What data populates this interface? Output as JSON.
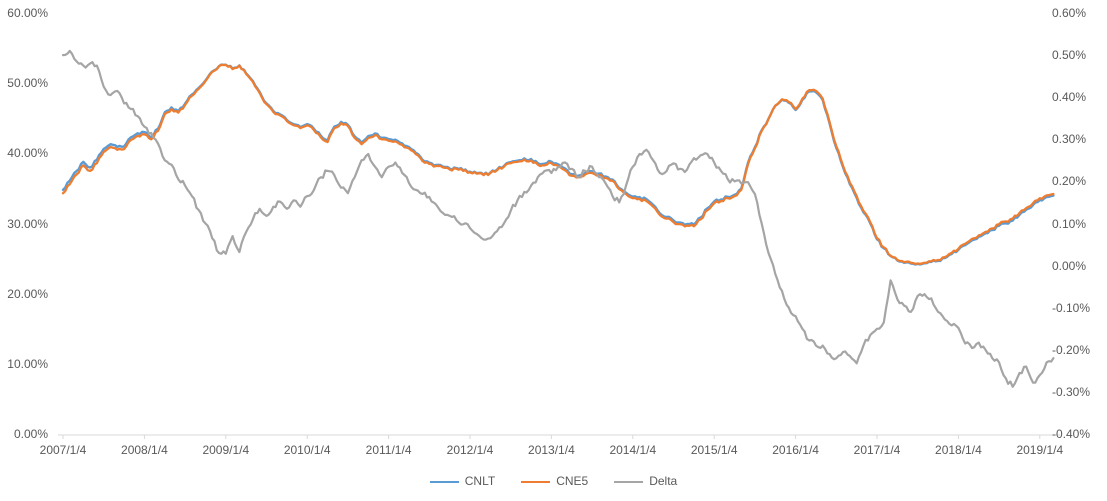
{
  "chart": {
    "background": "#FFFFFF",
    "text_color": "#595959",
    "axis_line_color": "#D9D9D9"
  },
  "axes": {
    "left": {
      "tick_labels_top_to_bottom": [
        "60.00%",
        "50.00%",
        "40.00%",
        "30.00%",
        "20.00%",
        "10.00%",
        "0.00%"
      ]
    },
    "right": {
      "tick_labels_top_to_bottom": [
        "0.60%",
        "0.50%",
        "0.40%",
        "0.30%",
        "0.20%",
        "0.10%",
        "0.00%",
        "-0.10%",
        "-0.20%",
        "-0.30%",
        "-0.40%"
      ]
    },
    "x": {
      "tick_labels": [
        "2007/1/4",
        "2008/1/4",
        "2009/1/4",
        "2010/1/4",
        "2011/1/4",
        "2012/1/4",
        "2013/1/4",
        "2014/1/4",
        "2015/1/4",
        "2016/1/4",
        "2017/1/4",
        "2018/1/4",
        "2019/1/4"
      ]
    }
  },
  "chart_data": {
    "type": "line",
    "title": "",
    "xlabel": "",
    "ylabel_left": "",
    "ylabel_right": "",
    "grid": false,
    "legend_position": "bottom-center",
    "left_axis_range": [
      0,
      60
    ],
    "right_axis_range": [
      -0.4,
      0.6
    ],
    "left_axis_unit": "%",
    "right_axis_unit": "%",
    "x": {
      "type": "monthly",
      "start": "2007/01",
      "end": "2019/03",
      "count": 147
    },
    "x_tick_years": [
      2007,
      2008,
      2009,
      2010,
      2011,
      2012,
      2013,
      2014,
      2015,
      2016,
      2017,
      2018,
      2019
    ],
    "series": [
      {
        "name": "CNLT",
        "axis": "left",
        "color": "#5B9BD5",
        "derived": "CNE5 + Delta",
        "note": "CNLT overlaps CNE5 almost exactly; offset equals Delta series (in percentage points)"
      },
      {
        "name": "CNE5",
        "axis": "left",
        "color": "#ED7D31",
        "values": [
          34.3,
          35.6,
          37.0,
          38.3,
          37.5,
          38.6,
          40.2,
          40.9,
          40.5,
          40.6,
          41.9,
          42.5,
          42.7,
          42.0,
          43.2,
          45.6,
          46.3,
          45.8,
          46.9,
          48.2,
          49.2,
          50.3,
          51.6,
          52.4,
          52.6,
          52.0,
          52.5,
          51.3,
          50.2,
          48.6,
          47.0,
          45.9,
          45.4,
          44.6,
          44.0,
          43.6,
          44.0,
          43.3,
          42.3,
          41.6,
          43.6,
          44.3,
          43.9,
          42.2,
          41.3,
          42.2,
          42.6,
          42.0,
          41.8,
          41.7,
          41.2,
          40.7,
          39.9,
          38.9,
          38.5,
          38.2,
          38.0,
          37.7,
          37.8,
          37.5,
          37.3,
          37.1,
          36.9,
          37.2,
          37.6,
          38.1,
          38.6,
          38.8,
          39.1,
          39.0,
          38.4,
          38.3,
          38.6,
          38.2,
          37.6,
          36.8,
          36.6,
          37.0,
          37.2,
          36.9,
          36.5,
          36.1,
          34.9,
          34.2,
          33.6,
          33.5,
          33.2,
          32.4,
          31.2,
          30.7,
          30.2,
          29.9,
          29.7,
          29.6,
          30.6,
          31.9,
          32.9,
          33.2,
          33.6,
          33.9,
          34.8,
          38.5,
          40.7,
          43.2,
          44.9,
          46.8,
          47.7,
          47.3,
          46.3,
          47.8,
          49.0,
          48.9,
          47.8,
          44.5,
          41.0,
          38.2,
          35.8,
          33.9,
          31.8,
          30.2,
          27.9,
          26.6,
          25.4,
          24.8,
          24.5,
          24.4,
          24.3,
          24.4,
          24.6,
          24.8,
          25.2,
          25.8,
          26.4,
          27.1,
          27.8,
          28.3,
          28.8,
          29.3,
          29.9,
          30.3,
          30.7,
          31.5,
          32.2,
          32.9,
          33.6,
          34.0,
          34.2
        ]
      },
      {
        "name": "Delta",
        "axis": "right",
        "color": "#A5A5A5",
        "values": [
          0.5,
          0.51,
          0.485,
          0.475,
          0.48,
          0.475,
          0.425,
          0.405,
          0.415,
          0.385,
          0.372,
          0.355,
          0.33,
          0.315,
          0.29,
          0.25,
          0.24,
          0.205,
          0.19,
          0.165,
          0.132,
          0.1,
          0.065,
          0.03,
          0.028,
          0.07,
          0.032,
          0.08,
          0.11,
          0.135,
          0.118,
          0.14,
          0.152,
          0.135,
          0.155,
          0.14,
          0.165,
          0.18,
          0.21,
          0.225,
          0.215,
          0.185,
          0.172,
          0.21,
          0.25,
          0.265,
          0.235,
          0.21,
          0.235,
          0.245,
          0.22,
          0.196,
          0.18,
          0.17,
          0.163,
          0.145,
          0.125,
          0.118,
          0.108,
          0.098,
          0.089,
          0.075,
          0.062,
          0.065,
          0.082,
          0.1,
          0.13,
          0.155,
          0.175,
          0.19,
          0.21,
          0.225,
          0.22,
          0.235,
          0.245,
          0.23,
          0.21,
          0.225,
          0.235,
          0.21,
          0.195,
          0.165,
          0.15,
          0.19,
          0.235,
          0.265,
          0.275,
          0.25,
          0.22,
          0.225,
          0.243,
          0.23,
          0.228,
          0.255,
          0.262,
          0.265,
          0.245,
          0.225,
          0.205,
          0.2,
          0.195,
          0.198,
          0.17,
          0.1,
          0.03,
          -0.02,
          -0.06,
          -0.1,
          -0.12,
          -0.15,
          -0.178,
          -0.19,
          -0.19,
          -0.21,
          -0.22,
          -0.205,
          -0.215,
          -0.232,
          -0.19,
          -0.165,
          -0.15,
          -0.135,
          -0.035,
          -0.08,
          -0.095,
          -0.11,
          -0.072,
          -0.068,
          -0.078,
          -0.11,
          -0.128,
          -0.142,
          -0.148,
          -0.185,
          -0.196,
          -0.183,
          -0.2,
          -0.22,
          -0.23,
          -0.268,
          -0.288,
          -0.255,
          -0.24,
          -0.278,
          -0.26,
          -0.23,
          -0.22
        ]
      }
    ]
  }
}
